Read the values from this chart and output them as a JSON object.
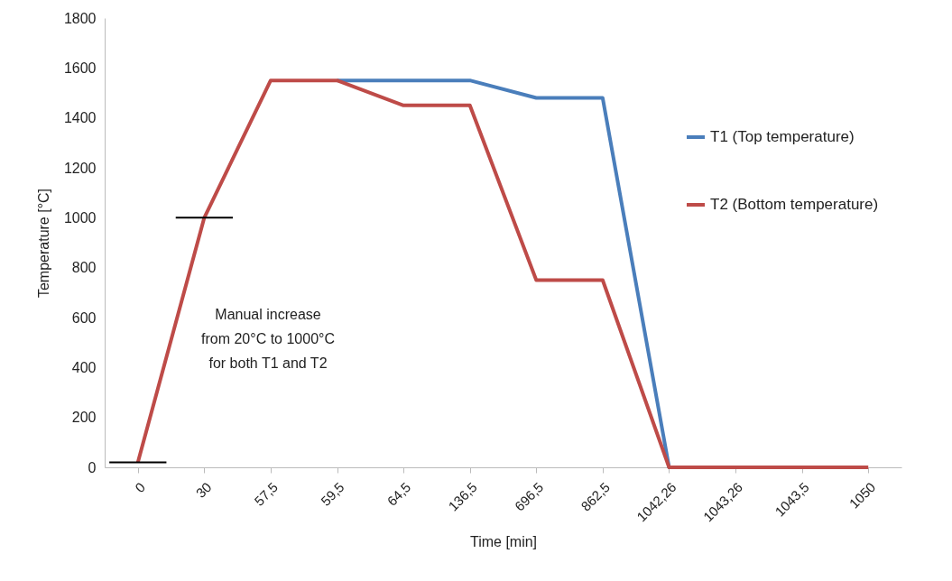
{
  "chart_data": {
    "type": "line",
    "xlabel": "Time [min]",
    "ylabel": "Temperature [°C]",
    "categories": [
      "0",
      "30",
      "57,5",
      "59,5",
      "64,5",
      "136,5",
      "696,5",
      "862,5",
      "1042,26",
      "1043,26",
      "1043,5",
      "1050"
    ],
    "series": [
      {
        "name": "T1 (Top temperature)",
        "color": "#4a7ebb",
        "values": [
          null,
          null,
          null,
          1550,
          1550,
          1550,
          1480,
          1480,
          0,
          0,
          null,
          null
        ]
      },
      {
        "name": "T2 (Bottom temperature)",
        "color": "#be4b48",
        "values": [
          20,
          1000,
          1550,
          1550,
          1450,
          1450,
          750,
          750,
          0,
          0,
          0,
          0
        ]
      }
    ],
    "ylim": [
      0,
      1800
    ],
    "yticks": [
      0,
      200,
      400,
      600,
      800,
      1000,
      1200,
      1400,
      1600,
      1800
    ],
    "annotations": [
      "Manual increase\nfrom 20°C to 1000°C\nfor both T1 and T2"
    ],
    "legend": "right",
    "grid": false
  }
}
